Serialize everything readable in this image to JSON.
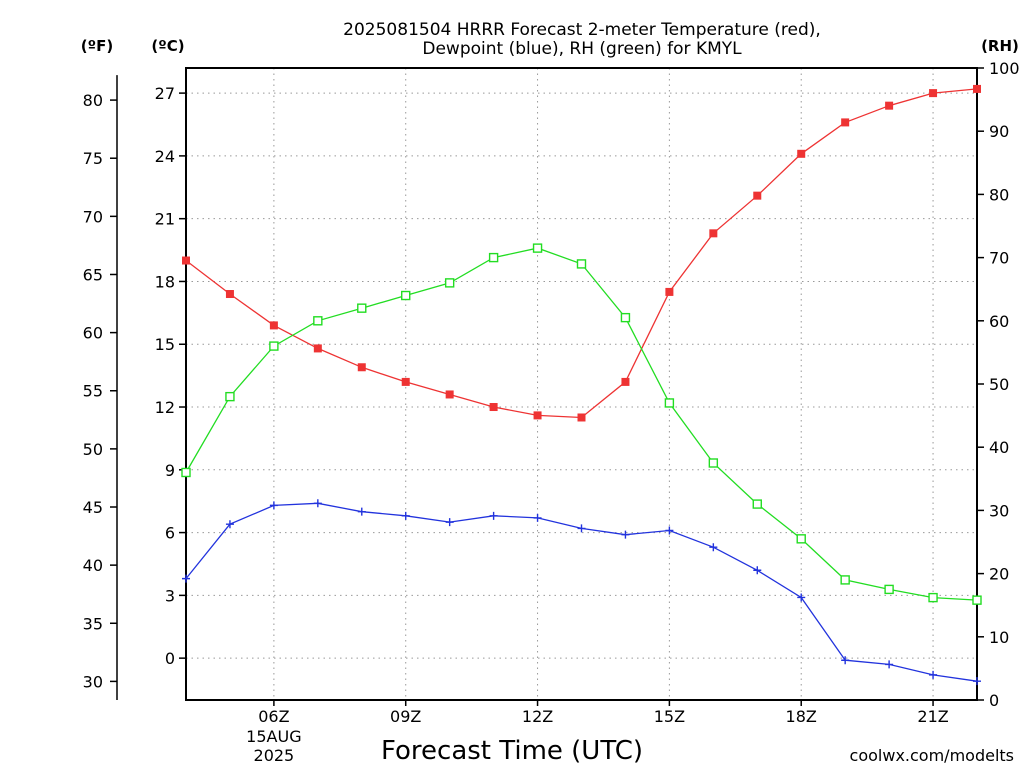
{
  "title_line1": "2025081504 HRRR Forecast 2-meter Temperature (red),",
  "title_line2": "Dewpoint (blue), RH (green) for KMYL",
  "unit_f": "(ºF)",
  "unit_c": "(ºC)",
  "unit_rh": "(RH)",
  "credit": "coolwx.com/modelts",
  "colors": {
    "temperature": "#ee3333",
    "dewpoint": "#2233dd",
    "rh": "#22dd22",
    "axis": "#000000",
    "credit": "#dd2222"
  },
  "chart_data": {
    "type": "line",
    "xlabel": "Forecast Time (UTC)",
    "x": [
      4,
      5,
      6,
      7,
      8,
      9,
      10,
      11,
      12,
      13,
      14,
      15,
      16,
      17,
      18,
      19,
      20,
      21,
      22
    ],
    "xlim": [
      4,
      22
    ],
    "x_ticks": [
      {
        "x": 6,
        "label": "06Z",
        "sub1": "15AUG",
        "sub2": "2025"
      },
      {
        "x": 9,
        "label": "09Z"
      },
      {
        "x": 12,
        "label": "12Z"
      },
      {
        "x": 15,
        "label": "15Z"
      },
      {
        "x": 18,
        "label": "18Z"
      },
      {
        "x": 21,
        "label": "21Z"
      }
    ],
    "y_left_c": {
      "label": "(ºC)",
      "ylim": [
        -2,
        28.2
      ],
      "ticks": [
        0,
        3,
        6,
        9,
        12,
        15,
        18,
        21,
        24,
        27
      ]
    },
    "y_left_f": {
      "label": "(ºF)",
      "ticks": [
        30,
        35,
        40,
        45,
        50,
        55,
        60,
        65,
        70,
        75,
        80
      ]
    },
    "y_right_rh": {
      "label": "(RH)",
      "ylim": [
        0,
        100
      ],
      "ticks": [
        0,
        10,
        20,
        30,
        40,
        50,
        60,
        70,
        80,
        90,
        100
      ]
    },
    "grid": true,
    "series": [
      {
        "name": "Temperature",
        "axis": "celsius",
        "marker": "filled-square",
        "color": "#ee3333",
        "values": [
          19.0,
          17.4,
          15.9,
          14.8,
          13.9,
          13.2,
          12.6,
          12.0,
          11.6,
          11.5,
          13.2,
          17.5,
          20.3,
          22.1,
          24.1,
          25.6,
          26.4,
          27.0,
          27.2
        ]
      },
      {
        "name": "Dewpoint",
        "axis": "celsius",
        "marker": "plus",
        "color": "#2233dd",
        "values": [
          3.8,
          6.4,
          7.3,
          7.4,
          7.0,
          6.8,
          6.5,
          6.8,
          6.7,
          6.2,
          5.9,
          6.1,
          5.3,
          4.2,
          2.9,
          -0.1,
          -0.3,
          -0.8,
          -1.1
        ]
      },
      {
        "name": "RH",
        "axis": "rh",
        "marker": "open-square",
        "color": "#22dd22",
        "values": [
          36,
          48,
          56,
          60,
          62,
          64,
          66,
          70,
          71.5,
          69,
          60.5,
          47,
          37.5,
          31,
          25.5,
          19,
          17.5,
          16.2,
          15.8
        ]
      }
    ]
  }
}
